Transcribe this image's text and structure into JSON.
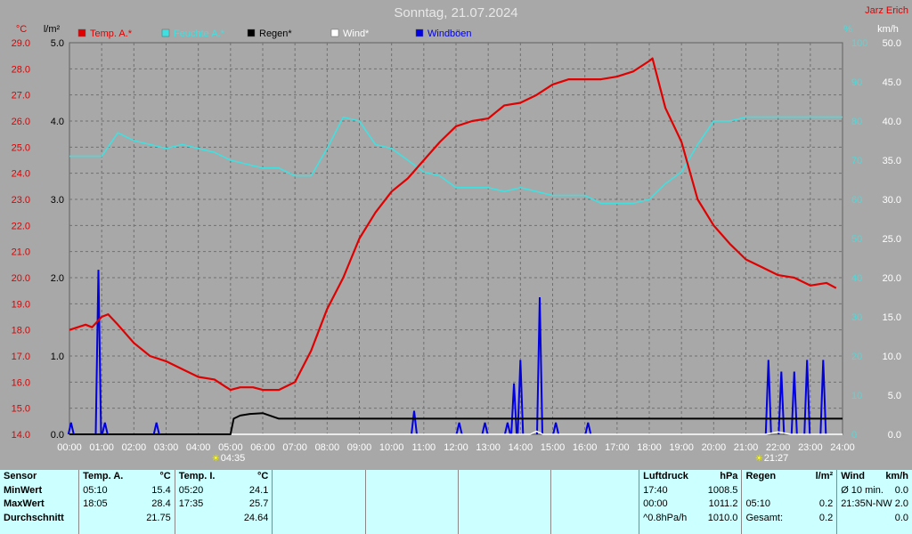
{
  "title": "Sonntag, 21.07.2024",
  "station": "Jarz Erich",
  "units": {
    "temp": "°C",
    "rain": "l/m²",
    "humidity": "%",
    "wind": "km/h"
  },
  "legend": [
    {
      "label": "Temp. A.*",
      "color": "#e00000"
    },
    {
      "label": "Feuchte A.*",
      "color": "#40e0e0"
    },
    {
      "label": "Regen*",
      "color": "#000000"
    },
    {
      "label": "Wind*",
      "color": "#ffffff"
    },
    {
      "label": "Windböen",
      "color": "#0000e0"
    }
  ],
  "sun": {
    "rise": "04:35",
    "set": "21:27"
  },
  "chart_data": {
    "type": "line",
    "x_ticks": [
      "00:00",
      "01:00",
      "02:00",
      "03:00",
      "04:00",
      "05:00",
      "06:00",
      "07:00",
      "08:00",
      "09:00",
      "10:00",
      "11:00",
      "12:00",
      "13:00",
      "14:00",
      "15:00",
      "16:00",
      "17:00",
      "18:00",
      "19:00",
      "20:00",
      "21:00",
      "22:00",
      "23:00",
      "24:00"
    ],
    "temp_ticks": [
      "14.0",
      "15.0",
      "16.0",
      "17.0",
      "18.0",
      "19.0",
      "20.0",
      "21.0",
      "22.0",
      "23.0",
      "24.0",
      "25.0",
      "26.0",
      "27.0",
      "28.0",
      "29.0"
    ],
    "rain_ticks": [
      "0.0",
      "1.0",
      "2.0",
      "3.0",
      "4.0",
      "5.0"
    ],
    "humidity_ticks": [
      "0",
      "10",
      "20",
      "30",
      "40",
      "50",
      "60",
      "70",
      "80",
      "90",
      "100"
    ],
    "wind_ticks": [
      "0.0",
      "5.0",
      "10.0",
      "15.0",
      "20.0",
      "25.0",
      "30.0",
      "35.0",
      "40.0",
      "45.0",
      "50.0"
    ],
    "temp_range": [
      14,
      29
    ],
    "rain_range": [
      0,
      5
    ],
    "humidity_range": [
      0,
      100
    ],
    "wind_range": [
      0,
      50
    ],
    "grid": true,
    "series": [
      {
        "name": "Temp. A.*",
        "axis": "temp",
        "hours": [
          0,
          0.5,
          0.7,
          1,
          1.2,
          1.5,
          2,
          2.5,
          3,
          3.5,
          4,
          4.5,
          5,
          5.3,
          5.7,
          6,
          6.5,
          7,
          7.5,
          8,
          8.5,
          9,
          9.5,
          10,
          10.5,
          11,
          11.5,
          12,
          12.5,
          13,
          13.5,
          14,
          14.5,
          15,
          15.5,
          16,
          16.5,
          17,
          17.5,
          18,
          18.1,
          18.5,
          19,
          19.5,
          20,
          20.5,
          21,
          21.5,
          22,
          22.5,
          23,
          23.5,
          23.8
        ],
        "values": [
          18.0,
          18.2,
          18.1,
          18.5,
          18.6,
          18.2,
          17.5,
          17.0,
          16.8,
          16.5,
          16.2,
          16.1,
          15.7,
          15.8,
          15.8,
          15.7,
          15.7,
          16.0,
          17.2,
          18.8,
          20.0,
          21.5,
          22.5,
          23.3,
          23.8,
          24.5,
          25.2,
          25.8,
          26.0,
          26.1,
          26.6,
          26.7,
          27.0,
          27.4,
          27.6,
          27.6,
          27.6,
          27.7,
          27.9,
          28.3,
          28.4,
          26.5,
          25.2,
          23.0,
          22.0,
          21.3,
          20.7,
          20.4,
          20.1,
          20.0,
          19.7,
          19.8,
          19.6
        ]
      },
      {
        "name": "Feuchte A.*",
        "axis": "humidity",
        "hours": [
          0,
          0.8,
          1,
          1.5,
          2,
          2.5,
          3,
          3.5,
          4,
          4.5,
          5,
          5.5,
          6,
          6.5,
          7,
          7.5,
          8,
          8.5,
          9,
          9.5,
          10,
          10.5,
          11,
          11.5,
          12,
          12.5,
          13,
          13.5,
          14,
          14.5,
          15,
          15.5,
          16,
          16.5,
          17,
          17.5,
          18,
          18.5,
          19,
          19.5,
          20,
          20.5,
          21,
          21.5,
          22,
          22.5,
          23,
          23.5,
          24
        ],
        "values": [
          71,
          71,
          71,
          77,
          75,
          74,
          73,
          74,
          73,
          72,
          70,
          69,
          68,
          68,
          66,
          66,
          73,
          81,
          80,
          74,
          73,
          70,
          67,
          66,
          63,
          63,
          63,
          62,
          63,
          62,
          61,
          61,
          61,
          59,
          59,
          59,
          60,
          64,
          67,
          74,
          80,
          80,
          81,
          81,
          81,
          81,
          81,
          81,
          81
        ]
      },
      {
        "name": "Regen*",
        "axis": "rain",
        "hours": [
          0,
          5.0,
          5.05,
          5.1,
          5.3,
          5.6,
          6,
          6.5,
          7,
          24
        ],
        "values": [
          0,
          0,
          0.1,
          0.2,
          0.24,
          0.26,
          0.27,
          0.2,
          0.2,
          0.2
        ]
      },
      {
        "name": "Wind*",
        "axis": "wind",
        "hours": [
          0,
          14.3,
          14.5,
          14.7,
          21.6,
          22,
          22.4,
          24
        ],
        "values": [
          0,
          0,
          0.4,
          0,
          0,
          0.3,
          0,
          0
        ]
      },
      {
        "name": "Windböen",
        "axis": "wind",
        "peaks": [
          [
            0.05,
            1.5
          ],
          [
            0.9,
            21
          ],
          [
            1.1,
            1.5
          ],
          [
            2.7,
            1.5
          ],
          [
            10.7,
            3
          ],
          [
            12.1,
            1.5
          ],
          [
            12.9,
            1.5
          ],
          [
            13.6,
            1.5
          ],
          [
            13.8,
            6.5
          ],
          [
            14.0,
            9.5
          ],
          [
            14.6,
            17.5
          ],
          [
            15.1,
            1.5
          ],
          [
            16.1,
            1.5
          ],
          [
            21.7,
            9.5
          ],
          [
            22.1,
            8
          ],
          [
            22.5,
            8
          ],
          [
            22.9,
            9.5
          ],
          [
            23.4,
            9.5
          ]
        ]
      }
    ]
  },
  "stats": {
    "sensor": {
      "title": "Sensor",
      "rows": [
        "MinWert",
        "MaxWert",
        "Durchschnitt"
      ]
    },
    "temp_a": {
      "title": "Temp. A.",
      "unit": "°C",
      "rows": [
        [
          "05:10",
          "15.4"
        ],
        [
          "18:05",
          "28.4"
        ],
        [
          "",
          "21.75"
        ]
      ]
    },
    "temp_i": {
      "title": "Temp. I.",
      "unit": "°C",
      "rows": [
        [
          "05:20",
          "24.1"
        ],
        [
          "17:35",
          "25.7"
        ],
        [
          "",
          "24.64"
        ]
      ]
    },
    "luftdruck": {
      "title": "Luftdruck",
      "unit": "hPa",
      "rows": [
        [
          "17:40",
          "1008.5"
        ],
        [
          "00:00",
          "1011.2"
        ],
        [
          "^0.8hPa/h",
          "1010.0"
        ]
      ]
    },
    "regen": {
      "title": "Regen",
      "unit": "l/m²",
      "rows": [
        [
          "",
          ""
        ],
        [
          "05:10",
          "0.2"
        ],
        [
          "Gesamt:",
          "0.2"
        ]
      ]
    },
    "wind": {
      "title": "Wind",
      "unit": "km/h",
      "rows": [
        [
          "Ø 10 min.",
          "0.0"
        ],
        [
          "21:35",
          "N-NW 2.0"
        ],
        [
          "",
          "0.0"
        ]
      ]
    }
  }
}
